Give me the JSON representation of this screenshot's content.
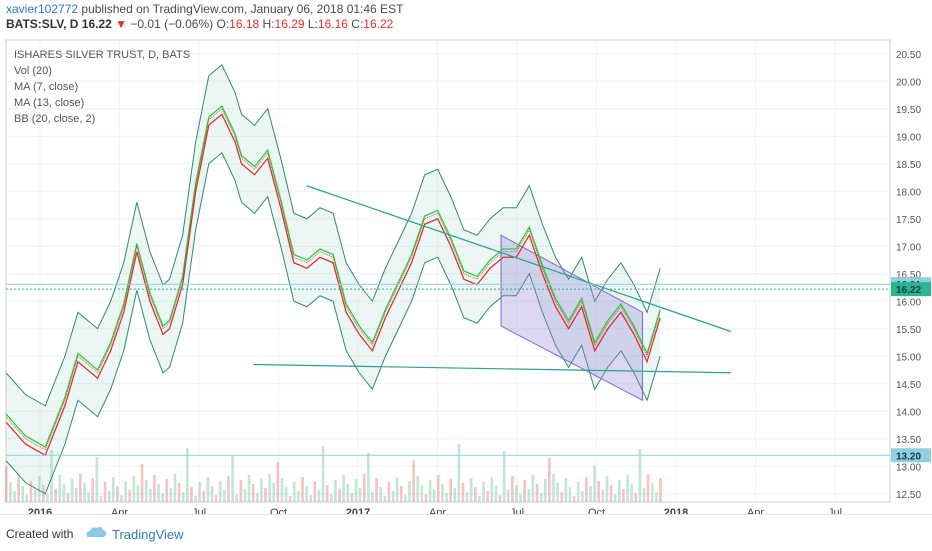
{
  "header": {
    "author": "xavier102772",
    "published": "published on TradingView.com, January 06, 2018 01:46 EST",
    "symbol": "BATS:SLV, D",
    "last": "16.22",
    "change_arrow": "▼",
    "change": "−0.01 (−0.06%)",
    "o_label": "O:",
    "o": "16.18",
    "h_label": "H:",
    "h": "16.29",
    "l_label": "L:",
    "l": "16.16",
    "c_label": "C:",
    "c": "16.22"
  },
  "legend": [
    "ISHARES SILVER TRUST, D, BATS",
    "Vol (20)",
    "MA (7, close)",
    "MA (13, close)",
    "BB (20, close, 2)"
  ],
  "footer": {
    "created_with": "Created with",
    "brand": "TradingView",
    "logo_icon": "tradingview-cloud-icon"
  },
  "chart_data": {
    "type": "line",
    "title": "ISHARES SILVER TRUST, D, BATS",
    "y_ticks": [
      "20.50",
      "20.00",
      "19.50",
      "19.00",
      "18.50",
      "18.00",
      "17.50",
      "17.00",
      "16.50",
      "16.00",
      "15.50",
      "15.00",
      "14.50",
      "14.00",
      "13.50",
      "13.00",
      "12.50"
    ],
    "x_ticks": [
      "2016",
      "Apr",
      "Jul",
      "Oct",
      "2017",
      "Apr",
      "Jul",
      "Oct",
      "2018",
      "Apr",
      "Jul"
    ],
    "ylim": [
      12.35,
      20.75
    ],
    "price_labels": [
      {
        "text": "16.31",
        "value": 16.31,
        "color": "#8fcfe0"
      },
      {
        "text": "16.22",
        "value": 16.22,
        "color": "#2bb58e"
      },
      {
        "text": "13.20",
        "value": 13.2,
        "color": "#8fcfe0"
      }
    ],
    "close_series": {
      "x": [
        0,
        0.03,
        0.06,
        0.09,
        0.11,
        0.14,
        0.16,
        0.18,
        0.2,
        0.22,
        0.24,
        0.25,
        0.27,
        0.29,
        0.31,
        0.33,
        0.35,
        0.36,
        0.38,
        0.4,
        0.42,
        0.44,
        0.46,
        0.48,
        0.5,
        0.52,
        0.54,
        0.56,
        0.58,
        0.6,
        0.62,
        0.64,
        0.66,
        0.68,
        0.7,
        0.72,
        0.74,
        0.76,
        0.78,
        0.8,
        0.82,
        0.84,
        0.86,
        0.88,
        0.9,
        0.92,
        0.94,
        0.96,
        0.98,
        1.0
      ],
      "y": [
        13.9,
        13.5,
        13.3,
        14.2,
        15.0,
        14.7,
        15.2,
        15.9,
        17.0,
        16.1,
        15.5,
        15.6,
        16.4,
        18.1,
        19.3,
        19.5,
        19.0,
        18.6,
        18.4,
        18.7,
        17.8,
        16.8,
        16.7,
        16.9,
        16.8,
        15.9,
        15.5,
        15.2,
        15.8,
        16.3,
        16.8,
        17.5,
        17.6,
        17.1,
        16.5,
        16.4,
        16.7,
        16.9,
        16.9,
        17.3,
        16.6,
        16.0,
        15.6,
        16.0,
        15.2,
        15.6,
        15.9,
        15.5,
        15.0,
        15.8
      ]
    },
    "trend_lines": [
      {
        "name": "upper-trend",
        "from": [
          0.34,
          18.1
        ],
        "to": [
          0.82,
          15.45
        ]
      },
      {
        "name": "lower-trend",
        "from": [
          0.28,
          14.85
        ],
        "to": [
          0.82,
          14.7
        ]
      }
    ],
    "channel": {
      "top": [
        [
          0.56,
          17.2
        ],
        [
          0.72,
          15.8
        ]
      ],
      "bottom": [
        [
          0.56,
          15.55
        ],
        [
          0.72,
          14.2
        ]
      ]
    }
  }
}
